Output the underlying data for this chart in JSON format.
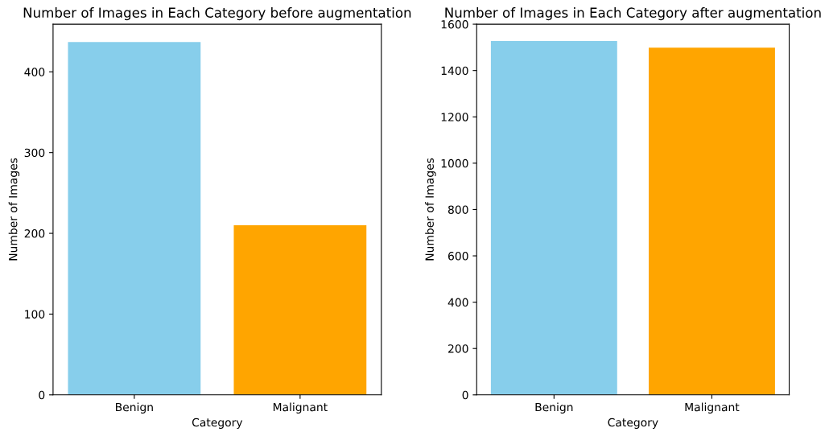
{
  "chart_data": [
    {
      "type": "bar",
      "title": "Number of Images in Each Category before augmentation",
      "xlabel": "Category",
      "ylabel": "Number of Images",
      "categories": [
        "Benign",
        "Malignant"
      ],
      "values": [
        437,
        210
      ],
      "colors": [
        "#87ceeb",
        "#ffa500"
      ],
      "ylim": [
        0,
        459
      ],
      "yticks": [
        0,
        100,
        200,
        300,
        400
      ],
      "grid": false,
      "legend": false
    },
    {
      "type": "bar",
      "title": "Number of Images in Each Category after augmentation",
      "xlabel": "Category",
      "ylabel": "Number of Images",
      "categories": [
        "Benign",
        "Malignant"
      ],
      "values": [
        1527,
        1499
      ],
      "colors": [
        "#87ceeb",
        "#ffa500"
      ],
      "ylim": [
        0,
        1600
      ],
      "yticks": [
        0,
        200,
        400,
        600,
        800,
        1000,
        1200,
        1400,
        1600
      ],
      "grid": false,
      "legend": false
    }
  ]
}
